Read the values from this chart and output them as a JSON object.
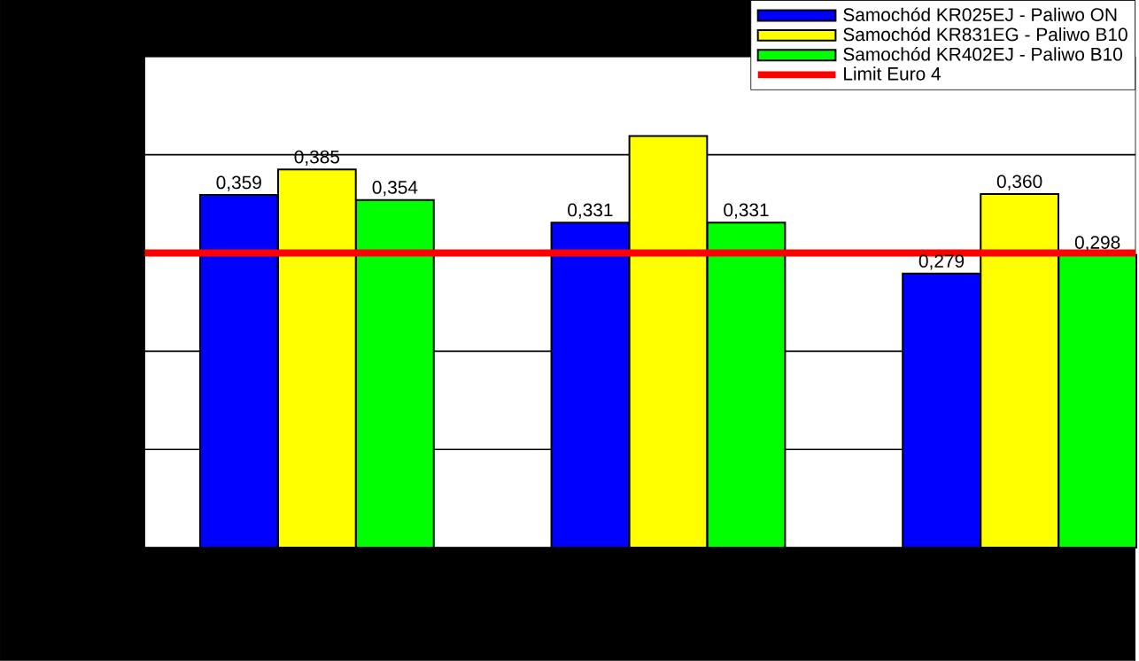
{
  "chart_data": {
    "type": "bar",
    "categories": [
      null,
      null,
      null
    ],
    "series": [
      {
        "name": "Samochód KR025EJ - Paliwo ON",
        "color": "#0000ff",
        "values": [
          0.359,
          0.331,
          0.279
        ],
        "value_labels": [
          "0,359",
          "0,331",
          "0,279"
        ]
      },
      {
        "name": "Samochód KR831EG - Paliwo B10",
        "color": "#ffff00",
        "values": [
          0.385,
          0.419,
          0.36
        ],
        "value_labels": [
          "0,385",
          null,
          "0,360"
        ]
      },
      {
        "name": "Samochód KR402EJ - Paliwo B10",
        "color": "#00ff00",
        "values": [
          0.354,
          0.331,
          0.298
        ],
        "value_labels": [
          "0,354",
          "0,331",
          "0,298"
        ]
      }
    ],
    "ylim": [
      0,
      0.5
    ],
    "yticks": [
      {
        "value": 0,
        "label": null
      },
      {
        "value": 0.1,
        "label": null
      },
      {
        "value": 0.2,
        "label": null
      },
      {
        "value": 0.3,
        "label": null
      },
      {
        "value": 0.4,
        "label": null
      },
      {
        "value": 0.5,
        "label": null
      }
    ],
    "ref_lines": [
      {
        "axis": "y",
        "value": 0.3,
        "label": "Limit Euro 4",
        "color": "#ff0000"
      }
    ],
    "grid": "y",
    "legend": "top right"
  }
}
